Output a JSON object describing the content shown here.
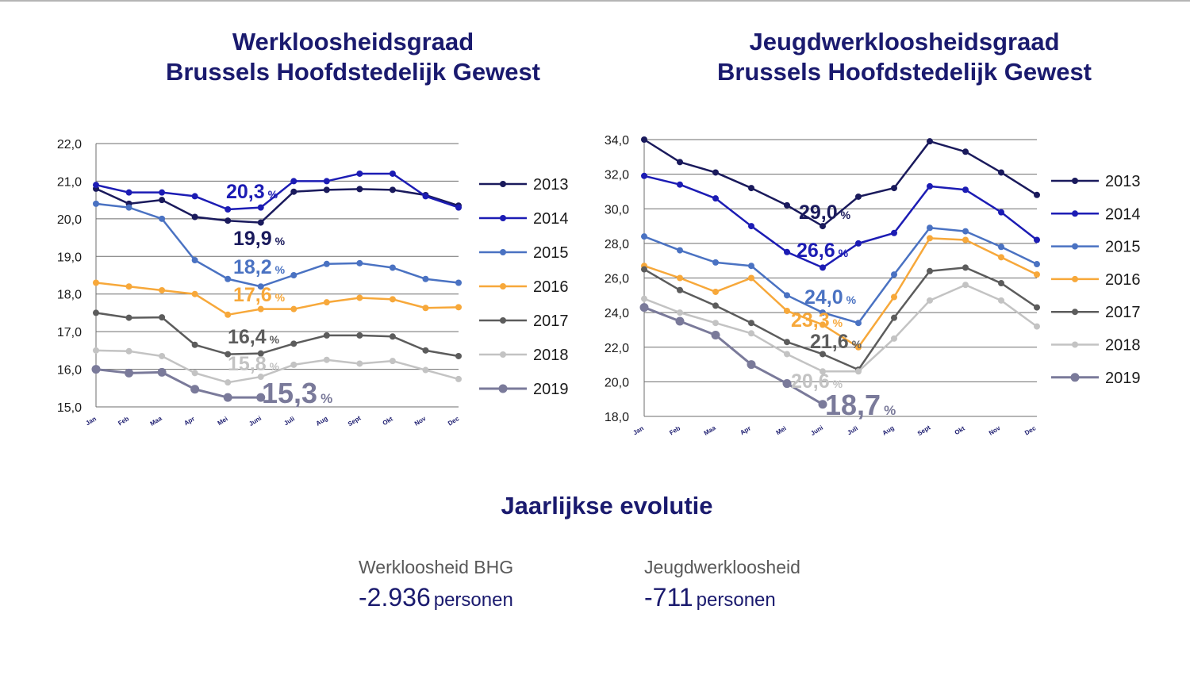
{
  "months": [
    "Jan",
    "Feb",
    "Maa",
    "Apr",
    "Mei",
    "Juni",
    "Juli",
    "Aug",
    "Sept",
    "Okt",
    "Nov",
    "Dec"
  ],
  "chart_data": [
    {
      "type": "line",
      "title_line1": "Werkloosheidsgraad",
      "title_line2": "Brussels Hoofdstedelijk Gewest",
      "ylim": [
        15,
        22
      ],
      "yticks": [
        "15,0",
        "16,0",
        "17,0",
        "18,0",
        "19,0",
        "20,0",
        "21,0",
        "22,0"
      ],
      "legend_placement": "right",
      "grid": true,
      "series": [
        {
          "name": "2013",
          "color": "#1a1a5c",
          "values": [
            20.8,
            20.4,
            20.5,
            20.05,
            19.95,
            19.9,
            20.72,
            20.77,
            20.79,
            20.77,
            20.63,
            20.35
          ]
        },
        {
          "name": "2014",
          "color": "#1c1cb4",
          "values": [
            20.9,
            20.7,
            20.7,
            20.6,
            20.25,
            20.3,
            21.0,
            21.0,
            21.2,
            21.2,
            20.6,
            20.3
          ]
        },
        {
          "name": "2015",
          "color": "#4a72c2",
          "values": [
            20.4,
            20.3,
            20.0,
            18.9,
            18.4,
            18.2,
            18.5,
            18.8,
            18.82,
            18.7,
            18.4,
            18.3
          ]
        },
        {
          "name": "2016",
          "color": "#f7a83a",
          "values": [
            18.3,
            18.2,
            18.1,
            18.0,
            17.45,
            17.6,
            17.6,
            17.78,
            17.9,
            17.86,
            17.63,
            17.65
          ]
        },
        {
          "name": "2017",
          "color": "#5c5c5c",
          "values": [
            17.5,
            17.37,
            17.38,
            16.65,
            16.4,
            16.42,
            16.68,
            16.9,
            16.9,
            16.87,
            16.5,
            16.35
          ]
        },
        {
          "name": "2018",
          "color": "#c3c3c3",
          "values": [
            16.5,
            16.48,
            16.35,
            15.9,
            15.65,
            15.8,
            16.12,
            16.25,
            16.15,
            16.22,
            15.98,
            15.74
          ]
        },
        {
          "name": "2019",
          "color": "#7a7a9a",
          "values": [
            16.0,
            15.9,
            15.92,
            15.47,
            15.25,
            15.25
          ]
        }
      ],
      "annotations": [
        {
          "number": "20,3",
          "suffix": "%",
          "color": "#1c1cb4"
        },
        {
          "number": "19,9",
          "suffix": "%",
          "color": "#1a1a5c"
        },
        {
          "number": "18,2",
          "suffix": "%",
          "color": "#4a72c2"
        },
        {
          "number": "17,6",
          "suffix": "%",
          "color": "#f7a83a"
        },
        {
          "number": "16,4",
          "suffix": "%",
          "color": "#5c5c5c"
        },
        {
          "number": "15,8",
          "suffix": "%",
          "color": "#c3c3c3"
        },
        {
          "number": "15,3",
          "suffix": "%",
          "color": "#7a7a9a"
        }
      ]
    },
    {
      "type": "line",
      "title_line1": "Jeugdwerkloosheidsgraad",
      "title_line2": "Brussels Hoofdstedelijk Gewest",
      "ylim": [
        18,
        34
      ],
      "yticks": [
        "18,0",
        "20,0",
        "22,0",
        "24,0",
        "26,0",
        "28,0",
        "30,0",
        "32,0",
        "34,0"
      ],
      "legend_placement": "right",
      "grid": true,
      "series": [
        {
          "name": "2013",
          "color": "#1a1a5c",
          "values": [
            34.0,
            32.7,
            32.1,
            31.2,
            30.2,
            29.0,
            30.7,
            31.2,
            33.9,
            33.3,
            32.1,
            30.8
          ]
        },
        {
          "name": "2014",
          "color": "#1c1cb4",
          "values": [
            31.9,
            31.4,
            30.6,
            29.0,
            27.5,
            26.6,
            28.0,
            28.6,
            31.3,
            31.1,
            29.8,
            28.2
          ]
        },
        {
          "name": "2015",
          "color": "#4a72c2",
          "values": [
            28.4,
            27.6,
            26.9,
            26.7,
            25.0,
            24.0,
            23.4,
            26.2,
            28.9,
            28.7,
            27.8,
            26.8
          ]
        },
        {
          "name": "2016",
          "color": "#f7a83a",
          "values": [
            26.7,
            26.0,
            25.2,
            26.0,
            24.1,
            23.3,
            22.0,
            24.9,
            28.3,
            28.2,
            27.2,
            26.2
          ]
        },
        {
          "name": "2017",
          "color": "#5c5c5c",
          "values": [
            26.5,
            25.3,
            24.4,
            23.4,
            22.3,
            21.6,
            20.7,
            23.7,
            26.4,
            26.6,
            25.7,
            24.3
          ]
        },
        {
          "name": "2018",
          "color": "#c3c3c3",
          "values": [
            24.8,
            24.0,
            23.4,
            22.8,
            21.6,
            20.6,
            20.6,
            22.5,
            24.7,
            25.6,
            24.7,
            23.2
          ]
        },
        {
          "name": "2019",
          "color": "#7a7a9a",
          "values": [
            24.3,
            23.5,
            22.7,
            21.0,
            19.9,
            18.7
          ]
        }
      ],
      "annotations": [
        {
          "number": "29,0",
          "suffix": "%",
          "color": "#1a1a5c"
        },
        {
          "number": "26,6",
          "suffix": "%",
          "color": "#1c1cb4"
        },
        {
          "number": "24,0",
          "suffix": "%",
          "color": "#4a72c2"
        },
        {
          "number": "23,3",
          "suffix": "%",
          "color": "#f7a83a"
        },
        {
          "number": "21,6",
          "suffix": "%",
          "color": "#5c5c5c"
        },
        {
          "number": "20,6",
          "suffix": "%",
          "color": "#c3c3c3"
        },
        {
          "number": "18,7",
          "suffix": "%",
          "color": "#7a7a9a"
        }
      ]
    }
  ],
  "summary": {
    "title": "Jaarlijkse evolutie",
    "items": [
      {
        "label": "Werkloosheid  BHG",
        "value": "-2.936",
        "unit": "personen"
      },
      {
        "label": "Jeugdwerkloosheid",
        "value": "-711",
        "unit": "personen"
      }
    ]
  }
}
